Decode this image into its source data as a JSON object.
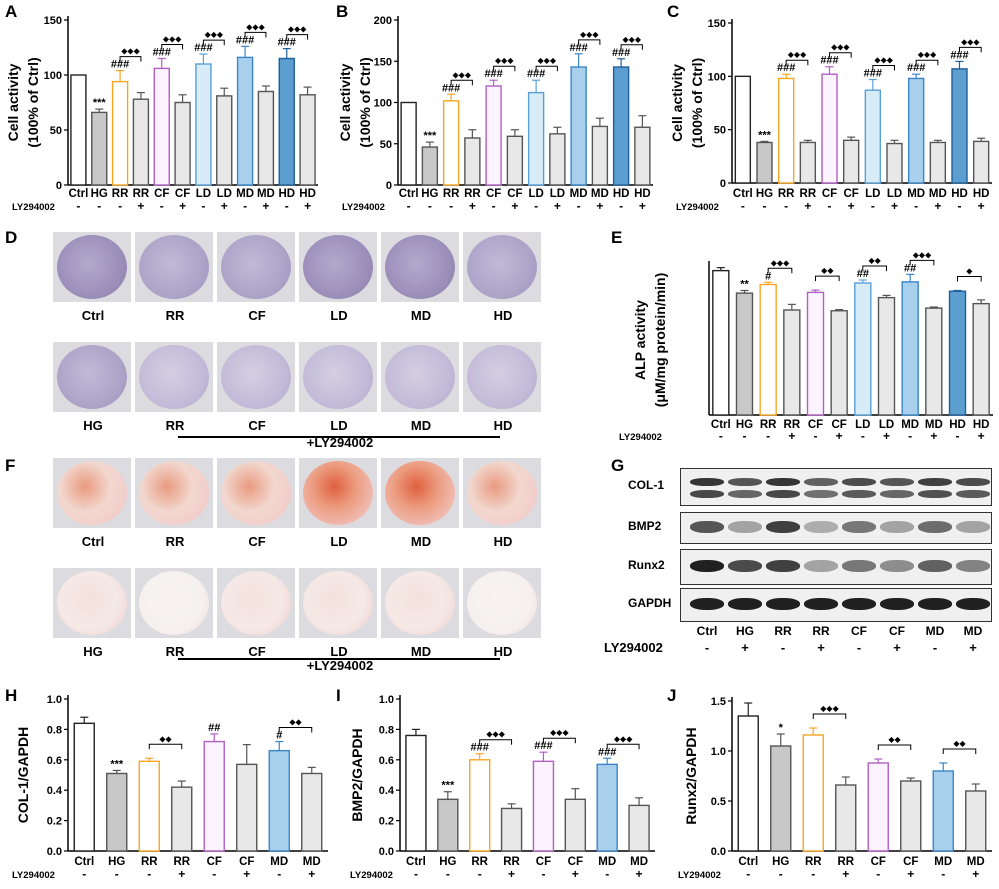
{
  "figure": {
    "panel_letters": [
      "A",
      "B",
      "C",
      "D",
      "E",
      "F",
      "G",
      "H",
      "I",
      "J"
    ],
    "factor_label": "LY294002",
    "plus_ly_label": "+LY294002",
    "colors": {
      "Ctrl": "#ffffff",
      "HG": "#c8c8c8",
      "RR": "#ffffff",
      "RR+": "#e8e8e8",
      "CF": "#ffffff",
      "LD": "#d8ecf8",
      "MD": "#a8d0ec",
      "HD": "#5b9ecf",
      "RR_edge": "#f5a623",
      "CF_edge": "#b25fc4",
      "LD_edge": "#5aa0d6",
      "MD_edge": "#3a85c8",
      "HD_edge": "#1f5f9a",
      "gray_edge": "#555555"
    }
  },
  "panel_D": {
    "top_row": [
      "Ctrl",
      "RR",
      "CF",
      "LD",
      "MD",
      "HD"
    ],
    "bottom_row": [
      "HG",
      "RR",
      "CF",
      "LD",
      "MD",
      "HD"
    ]
  },
  "panel_F": {
    "top_row": [
      "Ctrl",
      "RR",
      "CF",
      "LD",
      "MD",
      "HD"
    ],
    "bottom_row": [
      "HG",
      "RR",
      "CF",
      "LD",
      "MD",
      "HD"
    ]
  },
  "panel_G": {
    "bands": [
      "COL-1",
      "BMP2",
      "Runx2",
      "GAPDH"
    ],
    "lanes": [
      "Ctrl",
      "HG",
      "RR",
      "RR",
      "CF",
      "CF",
      "MD",
      "MD"
    ],
    "signs": [
      "-",
      "+",
      "-",
      "+",
      "-",
      "+",
      "-",
      "+"
    ]
  },
  "chart_data": [
    {
      "id": "A",
      "type": "bar",
      "ylabel_line1": "Cell activity",
      "ylabel_line2": "(100% of Ctrl)",
      "ylim": [
        0,
        150
      ],
      "yticks": [
        "0",
        "50",
        "100",
        "150"
      ],
      "categories": [
        "Ctrl",
        "HG",
        "RR",
        "RR",
        "CF",
        "CF",
        "LD",
        "LD",
        "MD",
        "MD",
        "HD",
        "HD"
      ],
      "signs": [
        "-",
        "-",
        "-",
        "+",
        "-",
        "+",
        "-",
        "+",
        "-",
        "+",
        "-",
        "+"
      ],
      "values": [
        100,
        66,
        94,
        78,
        106,
        75,
        110,
        81,
        116,
        85,
        115,
        82
      ],
      "errors": [
        0,
        3,
        10,
        6,
        9,
        7,
        9,
        7,
        10,
        5,
        9,
        7
      ],
      "annotations": [
        "",
        "***",
        "###",
        "",
        "###",
        "",
        "###",
        "",
        "###",
        "",
        "###",
        ""
      ],
      "brackets": [
        "◆◆◆",
        "◆◆◆",
        "◆◆◆",
        "◆◆◆",
        "◆◆◆"
      ]
    },
    {
      "id": "B",
      "type": "bar",
      "ylabel_line1": "Cell activity",
      "ylabel_line2": "(100% of Ctrl)",
      "ylim": [
        0,
        200
      ],
      "yticks": [
        "0",
        "50",
        "100",
        "150",
        "200"
      ],
      "categories": [
        "Ctrl",
        "HG",
        "RR",
        "RR",
        "CF",
        "CF",
        "LD",
        "LD",
        "MD",
        "MD",
        "HD",
        "HD"
      ],
      "signs": [
        "-",
        "-",
        "-",
        "+",
        "-",
        "+",
        "-",
        "+",
        "-",
        "+",
        "-",
        "+"
      ],
      "values": [
        100,
        46,
        102,
        57,
        120,
        59,
        112,
        62,
        143,
        71,
        143,
        70
      ],
      "errors": [
        0,
        6,
        8,
        10,
        7,
        8,
        15,
        8,
        16,
        10,
        10,
        14
      ],
      "annotations": [
        "",
        "***",
        "###",
        "",
        "###",
        "",
        "###",
        "",
        "###",
        "",
        "###",
        ""
      ],
      "brackets": [
        "◆◆◆",
        "◆◆◆",
        "◆◆◆",
        "◆◆◆",
        "◆◆◆"
      ]
    },
    {
      "id": "C",
      "type": "bar",
      "ylabel_line1": "Cell activity",
      "ylabel_line2": "(100% of Ctrl)",
      "ylim": [
        0,
        150
      ],
      "yticks": [
        "0",
        "50",
        "100",
        "150"
      ],
      "categories": [
        "Ctrl",
        "HG",
        "RR",
        "RR",
        "CF",
        "CF",
        "LD",
        "LD",
        "MD",
        "MD",
        "HD",
        "HD"
      ],
      "signs": [
        "-",
        "-",
        "-",
        "+",
        "-",
        "+",
        "-",
        "+",
        "-",
        "+",
        "-",
        "+"
      ],
      "values": [
        100,
        38,
        98,
        38,
        102,
        40,
        87,
        37,
        98,
        38,
        107,
        39
      ],
      "errors": [
        0,
        1,
        4,
        2,
        7,
        3,
        10,
        3,
        4,
        2,
        7,
        3
      ],
      "annotations": [
        "",
        "***",
        "###",
        "",
        "###",
        "",
        "###",
        "",
        "###",
        "",
        "###",
        ""
      ],
      "brackets": [
        "◆◆◆",
        "◆◆◆",
        "◆◆◆",
        "◆◆◆",
        "◆◆◆"
      ]
    },
    {
      "id": "E",
      "type": "bar",
      "ylabel_line1": "ALP activity",
      "ylabel_line2": "(μM/mg protein/min)",
      "ylim": [
        0,
        0.4
      ],
      "yticks": [],
      "categories": [
        "Ctrl",
        "HG",
        "RR",
        "RR",
        "CF",
        "CF",
        "LD",
        "LD",
        "MD",
        "MD",
        "HD",
        "HD"
      ],
      "signs": [
        "-",
        "-",
        "-",
        "+",
        "-",
        "+",
        "-",
        "+",
        "-",
        "+",
        "-",
        "+"
      ],
      "values": [
        0.385,
        0.325,
        0.348,
        0.28,
        0.327,
        0.278,
        0.352,
        0.313,
        0.355,
        0.285,
        0.33,
        0.297
      ],
      "errors": [
        0.008,
        0.007,
        0.006,
        0.015,
        0.006,
        0.003,
        0.008,
        0.006,
        0.02,
        0.003,
        0.002,
        0.01
      ],
      "annotations": [
        "",
        "**",
        "#",
        "",
        "",
        "",
        "##",
        "",
        "##",
        "",
        "",
        ""
      ],
      "brackets": [
        "◆◆◆",
        "◆◆",
        "◆◆",
        "◆◆◆",
        "◆"
      ]
    },
    {
      "id": "H",
      "type": "bar",
      "ylabel_line1": "COL-1/GAPDH",
      "ylabel_line2": "",
      "ylim": [
        0,
        1.0
      ],
      "yticks": [
        "0.0",
        "0.2",
        "0.4",
        "0.6",
        "0.8",
        "1.0"
      ],
      "categories": [
        "Ctrl",
        "HG",
        "RR",
        "RR",
        "CF",
        "CF",
        "MD",
        "MD"
      ],
      "signs": [
        "-",
        "-",
        "-",
        "+",
        "-",
        "+",
        "-",
        "+"
      ],
      "values": [
        0.84,
        0.51,
        0.59,
        0.42,
        0.72,
        0.57,
        0.66,
        0.51
      ],
      "errors": [
        0.04,
        0.02,
        0.02,
        0.04,
        0.05,
        0.13,
        0.06,
        0.04
      ],
      "annotations": [
        "",
        "***",
        "",
        "",
        "##",
        "",
        "#",
        ""
      ],
      "brackets": [
        "◆◆",
        "",
        "◆◆"
      ]
    },
    {
      "id": "I",
      "type": "bar",
      "ylabel_line1": "BMP2/GAPDH",
      "ylabel_line2": "",
      "ylim": [
        0,
        1.0
      ],
      "yticks": [
        "0.0",
        "0.2",
        "0.4",
        "0.6",
        "0.8",
        "1.0"
      ],
      "categories": [
        "Ctrl",
        "HG",
        "RR",
        "RR",
        "CF",
        "CF",
        "MD",
        "MD"
      ],
      "signs": [
        "-",
        "-",
        "-",
        "+",
        "-",
        "+",
        "-",
        "+"
      ],
      "values": [
        0.76,
        0.34,
        0.6,
        0.28,
        0.59,
        0.34,
        0.57,
        0.3
      ],
      "errors": [
        0.04,
        0.05,
        0.04,
        0.03,
        0.06,
        0.07,
        0.04,
        0.05
      ],
      "annotations": [
        "",
        "***",
        "###",
        "",
        "###",
        "",
        "###",
        ""
      ],
      "brackets": [
        "◆◆◆",
        "◆◆◆",
        "◆◆◆"
      ]
    },
    {
      "id": "J",
      "type": "bar",
      "ylabel_line1": "Runx2/GAPDH",
      "ylabel_line2": "",
      "ylim": [
        0,
        1.5
      ],
      "yticks": [
        "0.0",
        "0.5",
        "1.0",
        "1.5"
      ],
      "categories": [
        "Ctrl",
        "HG",
        "RR",
        "RR",
        "CF",
        "CF",
        "MD",
        "MD"
      ],
      "signs": [
        "-",
        "-",
        "-",
        "+",
        "-",
        "+",
        "-",
        "+"
      ],
      "values": [
        1.35,
        1.05,
        1.16,
        0.66,
        0.88,
        0.7,
        0.8,
        0.6
      ],
      "errors": [
        0.13,
        0.12,
        0.07,
        0.08,
        0.04,
        0.03,
        0.08,
        0.07
      ],
      "annotations": [
        "",
        "*",
        "",
        "",
        "",
        "",
        "",
        ""
      ],
      "brackets": [
        "◆◆◆",
        "◆◆",
        "◆◆"
      ]
    }
  ]
}
